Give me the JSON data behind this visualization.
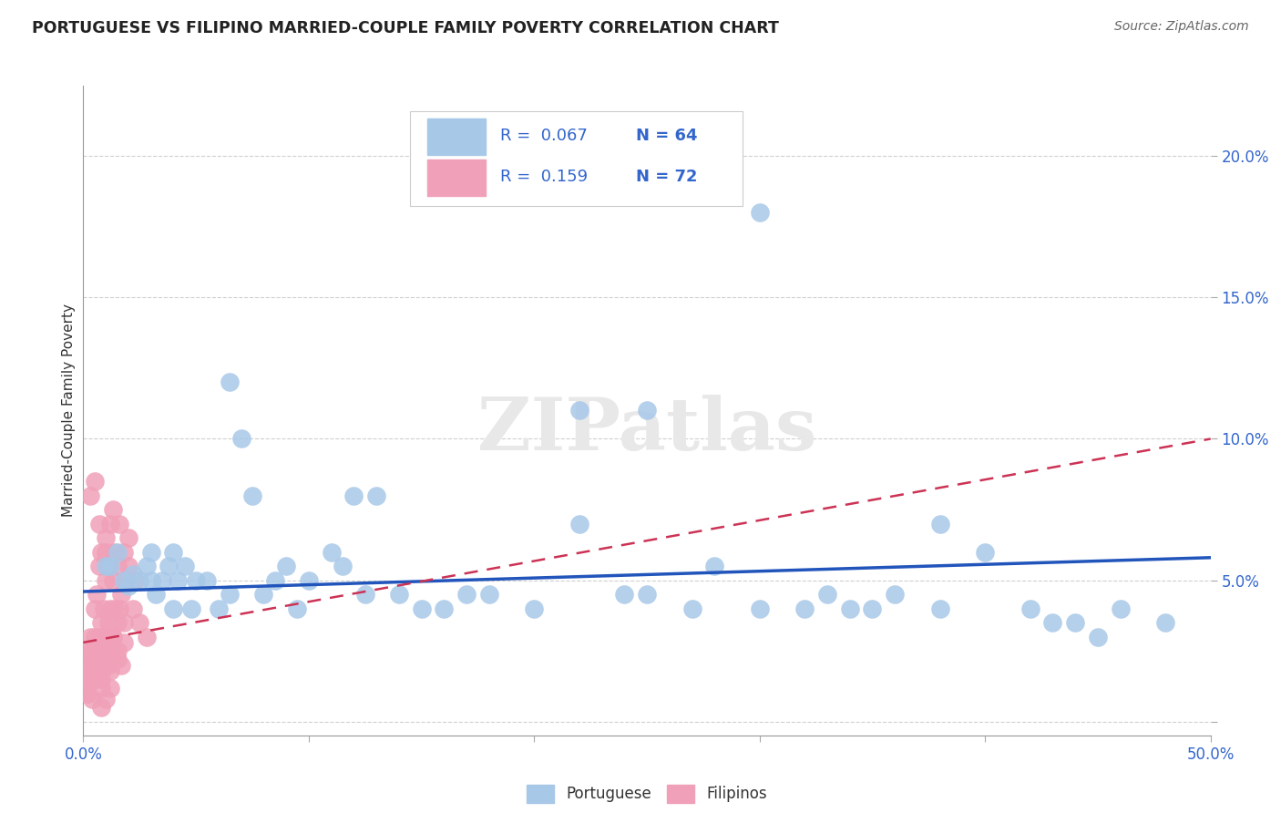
{
  "title": "PORTUGUESE VS FILIPINO MARRIED-COUPLE FAMILY POVERTY CORRELATION CHART",
  "source": "Source: ZipAtlas.com",
  "ylabel": "Married-Couple Family Poverty",
  "xlim": [
    0,
    0.5
  ],
  "ylim": [
    -0.005,
    0.225
  ],
  "portuguese_R": 0.067,
  "portuguese_N": 64,
  "filipino_R": 0.159,
  "filipino_N": 72,
  "portuguese_color": "#a8c8e8",
  "filipino_color": "#f0a0b8",
  "portuguese_line_color": "#2255bb",
  "filipino_line_color": "#cc3355",
  "background_color": "#ffffff",
  "watermark": "ZIPatlas",
  "portuguese_x": [
    0.01,
    0.012,
    0.015,
    0.018,
    0.02,
    0.022,
    0.025,
    0.028,
    0.03,
    0.03,
    0.032,
    0.035,
    0.038,
    0.04,
    0.04,
    0.042,
    0.045,
    0.048,
    0.05,
    0.055,
    0.06,
    0.065,
    0.065,
    0.07,
    0.075,
    0.08,
    0.085,
    0.09,
    0.095,
    0.1,
    0.11,
    0.115,
    0.12,
    0.125,
    0.13,
    0.14,
    0.15,
    0.16,
    0.17,
    0.18,
    0.2,
    0.22,
    0.24,
    0.25,
    0.27,
    0.28,
    0.3,
    0.32,
    0.34,
    0.35,
    0.36,
    0.38,
    0.4,
    0.42,
    0.44,
    0.45,
    0.46,
    0.48,
    0.25,
    0.3,
    0.22,
    0.33,
    0.38,
    0.43
  ],
  "portuguese_y": [
    0.055,
    0.055,
    0.06,
    0.05,
    0.048,
    0.052,
    0.05,
    0.055,
    0.05,
    0.06,
    0.045,
    0.05,
    0.055,
    0.04,
    0.06,
    0.05,
    0.055,
    0.04,
    0.05,
    0.05,
    0.04,
    0.045,
    0.12,
    0.1,
    0.08,
    0.045,
    0.05,
    0.055,
    0.04,
    0.05,
    0.06,
    0.055,
    0.08,
    0.045,
    0.08,
    0.045,
    0.04,
    0.04,
    0.045,
    0.045,
    0.04,
    0.07,
    0.045,
    0.045,
    0.04,
    0.055,
    0.04,
    0.04,
    0.04,
    0.04,
    0.045,
    0.04,
    0.06,
    0.04,
    0.035,
    0.03,
    0.04,
    0.035,
    0.11,
    0.18,
    0.11,
    0.045,
    0.07,
    0.035
  ],
  "filipino_x": [
    0.001,
    0.002,
    0.002,
    0.003,
    0.003,
    0.004,
    0.004,
    0.005,
    0.005,
    0.005,
    0.006,
    0.006,
    0.007,
    0.007,
    0.008,
    0.008,
    0.009,
    0.009,
    0.01,
    0.01,
    0.01,
    0.011,
    0.011,
    0.012,
    0.012,
    0.013,
    0.013,
    0.014,
    0.014,
    0.015,
    0.015,
    0.016,
    0.017,
    0.018,
    0.018,
    0.019,
    0.02,
    0.02,
    0.022,
    0.023,
    0.002,
    0.003,
    0.004,
    0.005,
    0.006,
    0.007,
    0.008,
    0.009,
    0.01,
    0.011,
    0.012,
    0.013,
    0.015,
    0.017,
    0.003,
    0.005,
    0.007,
    0.01,
    0.013,
    0.016,
    0.002,
    0.004,
    0.006,
    0.008,
    0.012,
    0.015,
    0.018,
    0.008,
    0.01,
    0.012,
    0.025,
    0.028
  ],
  "filipino_y": [
    0.02,
    0.025,
    0.015,
    0.03,
    0.02,
    0.015,
    0.025,
    0.03,
    0.02,
    0.04,
    0.025,
    0.045,
    0.03,
    0.055,
    0.035,
    0.06,
    0.025,
    0.04,
    0.03,
    0.05,
    0.065,
    0.035,
    0.055,
    0.04,
    0.07,
    0.03,
    0.05,
    0.04,
    0.06,
    0.035,
    0.055,
    0.04,
    0.045,
    0.035,
    0.06,
    0.05,
    0.055,
    0.065,
    0.04,
    0.05,
    0.01,
    0.015,
    0.02,
    0.015,
    0.02,
    0.025,
    0.015,
    0.02,
    0.025,
    0.02,
    0.025,
    0.03,
    0.025,
    0.02,
    0.08,
    0.085,
    0.07,
    0.06,
    0.075,
    0.07,
    0.01,
    0.008,
    0.015,
    0.012,
    0.018,
    0.022,
    0.028,
    0.005,
    0.008,
    0.012,
    0.035,
    0.03
  ],
  "port_line_x0": 0.0,
  "port_line_y0": 0.046,
  "port_line_x1": 0.5,
  "port_line_y1": 0.058,
  "fil_line_x0": 0.0,
  "fil_line_y0": 0.028,
  "fil_line_x1": 0.5,
  "fil_line_y1": 0.1
}
